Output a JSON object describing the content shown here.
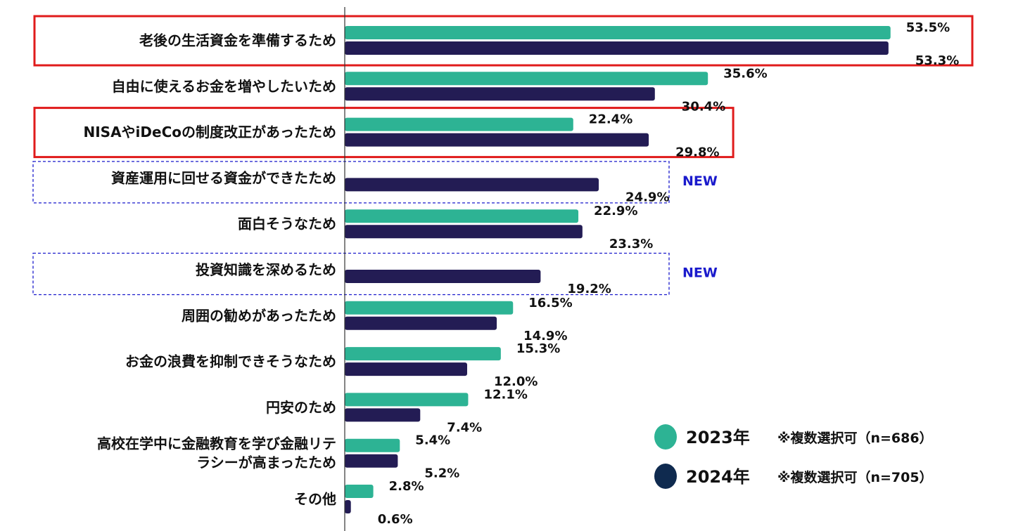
{
  "chart_data": {
    "type": "bar",
    "orientation": "horizontal",
    "value_format": "%",
    "categories": [
      [
        "老後の生活資金を準備するため"
      ],
      [
        "自由に使えるお金を増やしたいため"
      ],
      [
        "NISAやiDeCoの制度改正があったため"
      ],
      [
        "資産運用に回せる資金ができたため"
      ],
      [
        "面白そうなため"
      ],
      [
        "投資知識を深めるため"
      ],
      [
        "周囲の勧めがあったため"
      ],
      [
        "お金の浪費を抑制できそうなため"
      ],
      [
        "円安のため"
      ],
      [
        "高校在学中に金融教育を学び金融リテ",
        "ラシーが高まったため"
      ],
      [
        "その他"
      ]
    ],
    "series": [
      {
        "name": "2023年",
        "color": "#2db394",
        "values": [
          53.5,
          35.6,
          22.4,
          null,
          22.9,
          null,
          16.5,
          15.3,
          12.1,
          5.4,
          2.8
        ],
        "labels": [
          "53.5%",
          "35.6%",
          "22.4%",
          null,
          "22.9%",
          null,
          "16.5%",
          "15.3%",
          "12.1%",
          "5.4%",
          "2.8%"
        ]
      },
      {
        "name": "2024年",
        "color": "#231c54",
        "values": [
          53.3,
          30.4,
          29.8,
          24.9,
          23.3,
          19.2,
          14.9,
          12.0,
          7.4,
          5.2,
          0.6
        ],
        "labels": [
          "53.3%",
          "30.4%",
          "29.8%",
          "24.9%",
          "23.3%",
          "19.2%",
          "14.9%",
          "12.0%",
          "7.4%",
          "5.2%",
          "0.6%"
        ]
      }
    ],
    "highlights": {
      "red_box": [
        0,
        2
      ],
      "new_box": [
        3,
        5
      ],
      "new_label": "NEW",
      "red_color": "#e01b1b",
      "new_color": "#1a1acc"
    },
    "legend": {
      "position": "bottom-right",
      "entries": [
        {
          "label": "2023年",
          "note": "※複数選択可（n=686）",
          "color": "#2db394"
        },
        {
          "label": "2024年",
          "note": "※複数選択可（n=705）",
          "color": "#0f2a4f"
        }
      ]
    }
  }
}
